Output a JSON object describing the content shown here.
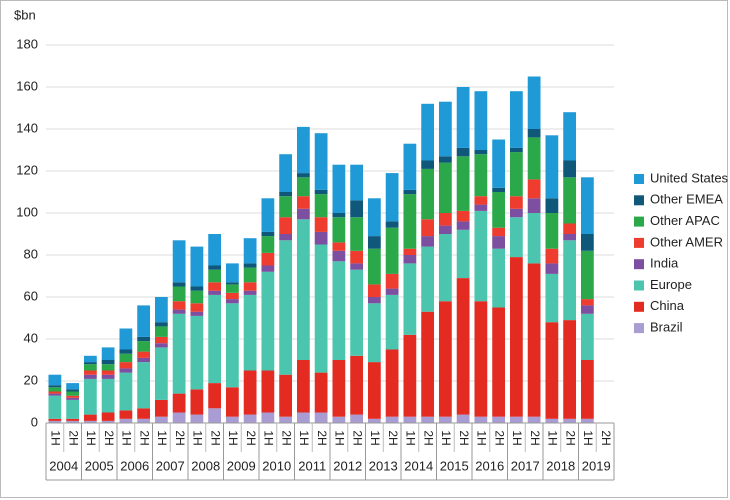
{
  "chart_data": {
    "type": "bar",
    "stacked": true,
    "ylabel": "$bn",
    "categories": [
      "1H",
      "2H",
      "1H",
      "2H",
      "1H",
      "2H",
      "1H",
      "2H",
      "1H",
      "2H",
      "1H",
      "2H",
      "1H",
      "2H",
      "1H",
      "2H",
      "1H",
      "2H",
      "1H",
      "2H",
      "1H",
      "2H",
      "1H",
      "2H",
      "1H",
      "2H",
      "1H",
      "2H",
      "1H",
      "2H",
      "1H",
      "2H"
    ],
    "groups": [
      "2004",
      "2005",
      "2006",
      "2007",
      "2008",
      "2009",
      "2010",
      "2011",
      "2012",
      "2013",
      "2014",
      "2015",
      "2016",
      "2017",
      "2018",
      "2019"
    ],
    "ylim": [
      0,
      180
    ],
    "yticks": [
      0,
      20,
      40,
      60,
      80,
      100,
      120,
      140,
      160,
      180
    ],
    "grid": true,
    "legend": "right",
    "series": [
      {
        "name": "Brazil",
        "color": "#a99cd2",
        "values": [
          1,
          1,
          1,
          1,
          2,
          2,
          3,
          5,
          4,
          7,
          3,
          4,
          5,
          3,
          5,
          5,
          3,
          4,
          2,
          3,
          3,
          3,
          3,
          4,
          3,
          3,
          3,
          3,
          2,
          2,
          2,
          null
        ]
      },
      {
        "name": "China",
        "color": "#e32b22",
        "values": [
          1,
          1,
          3,
          4,
          4,
          5,
          8,
          9,
          12,
          12,
          14,
          21,
          20,
          20,
          25,
          19,
          27,
          28,
          27,
          32,
          39,
          50,
          55,
          65,
          55,
          52,
          76,
          73,
          46,
          47,
          28,
          null
        ]
      },
      {
        "name": "Europe",
        "color": "#4cc5ae",
        "values": [
          11,
          9,
          17,
          16,
          18,
          22,
          25,
          38,
          35,
          42,
          40,
          36,
          47,
          64,
          67,
          61,
          47,
          41,
          28,
          26,
          34,
          31,
          32,
          23,
          43,
          28,
          19,
          24,
          23,
          38,
          22,
          null
        ]
      },
      {
        "name": "India",
        "color": "#7d4fa1",
        "values": [
          1,
          1,
          2,
          2,
          2,
          2,
          2,
          2,
          2,
          2,
          2,
          2,
          3,
          3,
          5,
          6,
          5,
          3,
          3,
          3,
          4,
          5,
          4,
          4,
          3,
          6,
          4,
          7,
          5,
          3,
          4,
          null
        ]
      },
      {
        "name": "Other AMER",
        "color": "#ee3d2e",
        "values": [
          1,
          1,
          2,
          2,
          3,
          3,
          3,
          4,
          4,
          4,
          3,
          4,
          6,
          8,
          6,
          7,
          4,
          6,
          6,
          7,
          3,
          8,
          6,
          5,
          4,
          4,
          6,
          9,
          7,
          5,
          3,
          null
        ]
      },
      {
        "name": "Other APAC",
        "color": "#2ba84a",
        "values": [
          2,
          2,
          3,
          3,
          4,
          5,
          5,
          7,
          6,
          6,
          4,
          7,
          8,
          10,
          9,
          11,
          12,
          16,
          17,
          22,
          26,
          24,
          24,
          26,
          20,
          17,
          21,
          20,
          17,
          22,
          23,
          null
        ]
      },
      {
        "name": "Other EMEA",
        "color": "#10587a",
        "values": [
          1,
          1,
          1,
          2,
          2,
          2,
          2,
          2,
          2,
          2,
          1,
          2,
          2,
          2,
          2,
          2,
          2,
          8,
          6,
          3,
          2,
          4,
          3,
          4,
          2,
          2,
          2,
          4,
          7,
          8,
          8,
          null
        ]
      },
      {
        "name": "United States",
        "color": "#1f9ad6",
        "values": [
          5,
          3,
          3,
          6,
          10,
          15,
          12,
          20,
          19,
          15,
          9,
          12,
          16,
          18,
          22,
          27,
          23,
          17,
          18,
          23,
          22,
          27,
          26,
          29,
          28,
          23,
          27,
          25,
          30,
          23,
          27,
          null
        ]
      }
    ]
  }
}
